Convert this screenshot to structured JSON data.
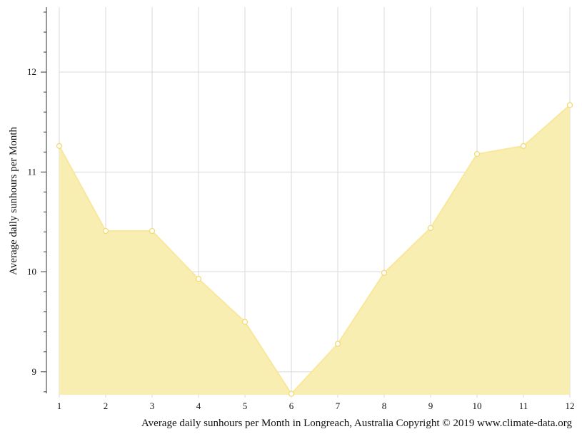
{
  "chart_data": {
    "type": "area",
    "title": "",
    "xlabel": "Average daily sunhours per Month in Longreach, Australia Copyright © 2019 www.climate-data.org",
    "ylabel": "Average daily sunhours per Month",
    "x": [
      1,
      2,
      3,
      4,
      5,
      6,
      7,
      8,
      9,
      10,
      11,
      12
    ],
    "x_tick_labels": [
      "1",
      "2",
      "3",
      "4",
      "5",
      "6",
      "7",
      "8",
      "9",
      "10",
      "11",
      "12"
    ],
    "y_ticks": [
      9,
      10,
      11,
      12
    ],
    "y_tick_labels": [
      "9",
      "10",
      "11",
      "12"
    ],
    "xlim": [
      1,
      12
    ],
    "ylim": [
      8.77,
      12.65
    ],
    "grid": true,
    "legend": "none",
    "series": [
      {
        "values": [
          11.26,
          10.41,
          10.41,
          9.93,
          9.5,
          8.78,
          9.28,
          9.99,
          10.44,
          11.18,
          11.26,
          11.67
        ]
      }
    ],
    "colors": {
      "area_fill": "#f9eeb2",
      "line": "#f8e79c",
      "marker_fill": "#ffffff",
      "marker_stroke": "#f2d96b",
      "grid": "#d9d9d9",
      "axis": "#333333",
      "text": "#111111"
    }
  }
}
